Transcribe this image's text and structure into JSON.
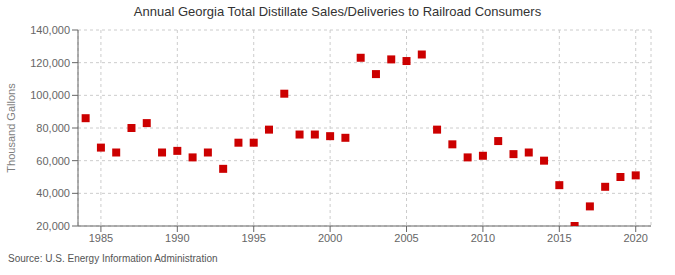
{
  "chart_data": {
    "type": "scatter",
    "title": "Annual Georgia Total Distillate Sales/Deliveries to Railroad Consumers",
    "ylabel": "Thousand Gallons",
    "annotations": [
      "Source: U.S. Energy Information Administration"
    ],
    "x": [
      1984,
      1985,
      1986,
      1987,
      1988,
      1989,
      1990,
      1991,
      1992,
      1993,
      1994,
      1995,
      1996,
      1997,
      1998,
      1999,
      2000,
      2001,
      2002,
      2003,
      2004,
      2005,
      2006,
      2007,
      2008,
      2009,
      2010,
      2011,
      2012,
      2013,
      2014,
      2015,
      2016,
      2017,
      2018,
      2019,
      2020
    ],
    "values": [
      86000,
      68000,
      65000,
      80000,
      83000,
      65000,
      66000,
      62000,
      65000,
      55000,
      71000,
      71000,
      79000,
      101000,
      76000,
      76000,
      75000,
      74000,
      123000,
      113000,
      122000,
      121000,
      125000,
      79000,
      70000,
      62000,
      63000,
      72000,
      64000,
      65000,
      60000,
      45000,
      20000,
      32000,
      44000,
      50000,
      51000
    ],
    "color": "#cc0000",
    "marker": "square",
    "xlim": [
      1983.5,
      2021
    ],
    "xticks": [
      1985,
      1990,
      1995,
      2000,
      2005,
      2010,
      2015,
      2020
    ],
    "ylim": [
      20000,
      140000
    ],
    "yticks": [
      {
        "value": 20000,
        "label": "20,000"
      },
      {
        "value": 40000,
        "label": "40,000"
      },
      {
        "value": 60000,
        "label": "60,000"
      },
      {
        "value": 80000,
        "label": "80,000"
      },
      {
        "value": 100000,
        "label": "100,000"
      },
      {
        "value": 120000,
        "label": "120,000"
      },
      {
        "value": 140000,
        "label": "140,000"
      }
    ],
    "grid": true
  }
}
